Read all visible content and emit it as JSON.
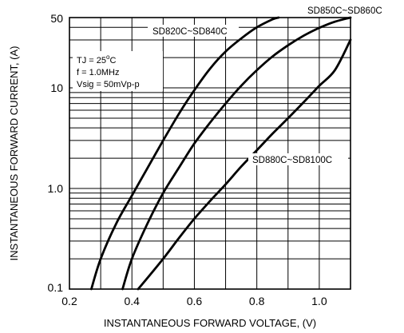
{
  "chart_data": {
    "type": "line",
    "xlabel": "INSTANTANEOUS FORWARD VOLTAGE, (V)",
    "ylabel": "INSTANTANEOUS FORWARD CURRENT, (A)",
    "xlim": [
      0.2,
      1.1
    ],
    "ylim": [
      0.1,
      50
    ],
    "y_scale": "log",
    "grid": true,
    "x_ticks": [
      "0.2",
      "0.4",
      "0.6",
      "0.8",
      "1.0"
    ],
    "y_ticks": [
      "0.1",
      "1.0",
      "10",
      "50"
    ],
    "series": [
      {
        "name": "SD820C~SD840C",
        "x": [
          0.27,
          0.3,
          0.35,
          0.4,
          0.45,
          0.5,
          0.55,
          0.6,
          0.65,
          0.7,
          0.75,
          0.8,
          0.85,
          0.87
        ],
        "y": [
          0.1,
          0.2,
          0.45,
          0.85,
          1.6,
          3.0,
          5.5,
          9.5,
          15.5,
          23,
          31,
          40,
          48,
          50
        ]
      },
      {
        "name": "SD850C~SD860C",
        "x": [
          0.37,
          0.4,
          0.45,
          0.5,
          0.55,
          0.6,
          0.65,
          0.7,
          0.75,
          0.8,
          0.85,
          0.9,
          0.95,
          1.0,
          1.05,
          1.1
        ],
        "y": [
          0.1,
          0.2,
          0.45,
          0.9,
          1.6,
          2.8,
          4.5,
          7.0,
          10.5,
          15,
          20.5,
          26.5,
          33,
          39.5,
          45.5,
          50
        ]
      },
      {
        "name": "SD880C~SD8100C",
        "x": [
          0.42,
          0.5,
          0.55,
          0.6,
          0.65,
          0.7,
          0.75,
          0.8,
          0.85,
          0.9,
          0.95,
          1.0,
          1.05,
          1.1
        ],
        "y": [
          0.1,
          0.2,
          0.32,
          0.5,
          0.75,
          1.1,
          1.65,
          2.4,
          3.5,
          5.0,
          7.2,
          10.5,
          15,
          30
        ]
      }
    ],
    "annotations": [
      "TJ = 25°C",
      "f = 1.0MHz",
      "Vsig = 50mVp-p"
    ]
  }
}
